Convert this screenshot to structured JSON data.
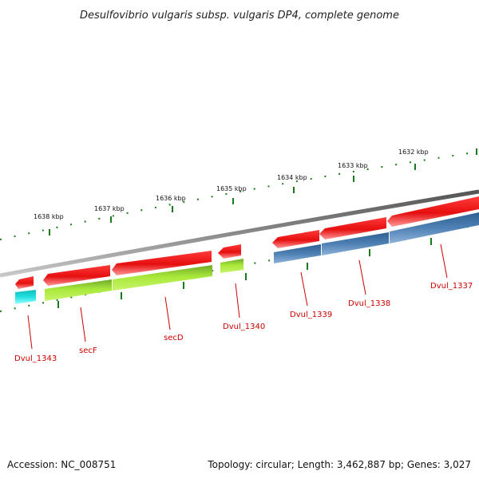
{
  "title": "Desulfovibrio vulgaris subsp. vulgaris DP4, complete genome",
  "footer": {
    "accession": "Accession: NC_008751",
    "summary": "Topology: circular; Length: 3,462,887 bp; Genes: 3,027"
  },
  "scale_labels": [
    "1638 kbp",
    "1637 kbp",
    "1636 kbp",
    "1635 kbp",
    "1634 kbp",
    "1633 kbp",
    "1632 kbp"
  ],
  "gene_labels": [
    "Dvul_1343",
    "secF",
    "secD",
    "Dvul_1340",
    "Dvul_1339",
    "Dvul_1338",
    "Dvul_1337"
  ],
  "colors": {
    "backbone": "#7f7f7f",
    "cds": "#ee1111",
    "cds_highlight": "#ff9a9a",
    "feature_cyan": "#22dddd",
    "feature_green": "#a8e83a",
    "feature_blue": "#4f81b4",
    "tick": "#1a7a1a",
    "label": "#cc0000"
  }
}
